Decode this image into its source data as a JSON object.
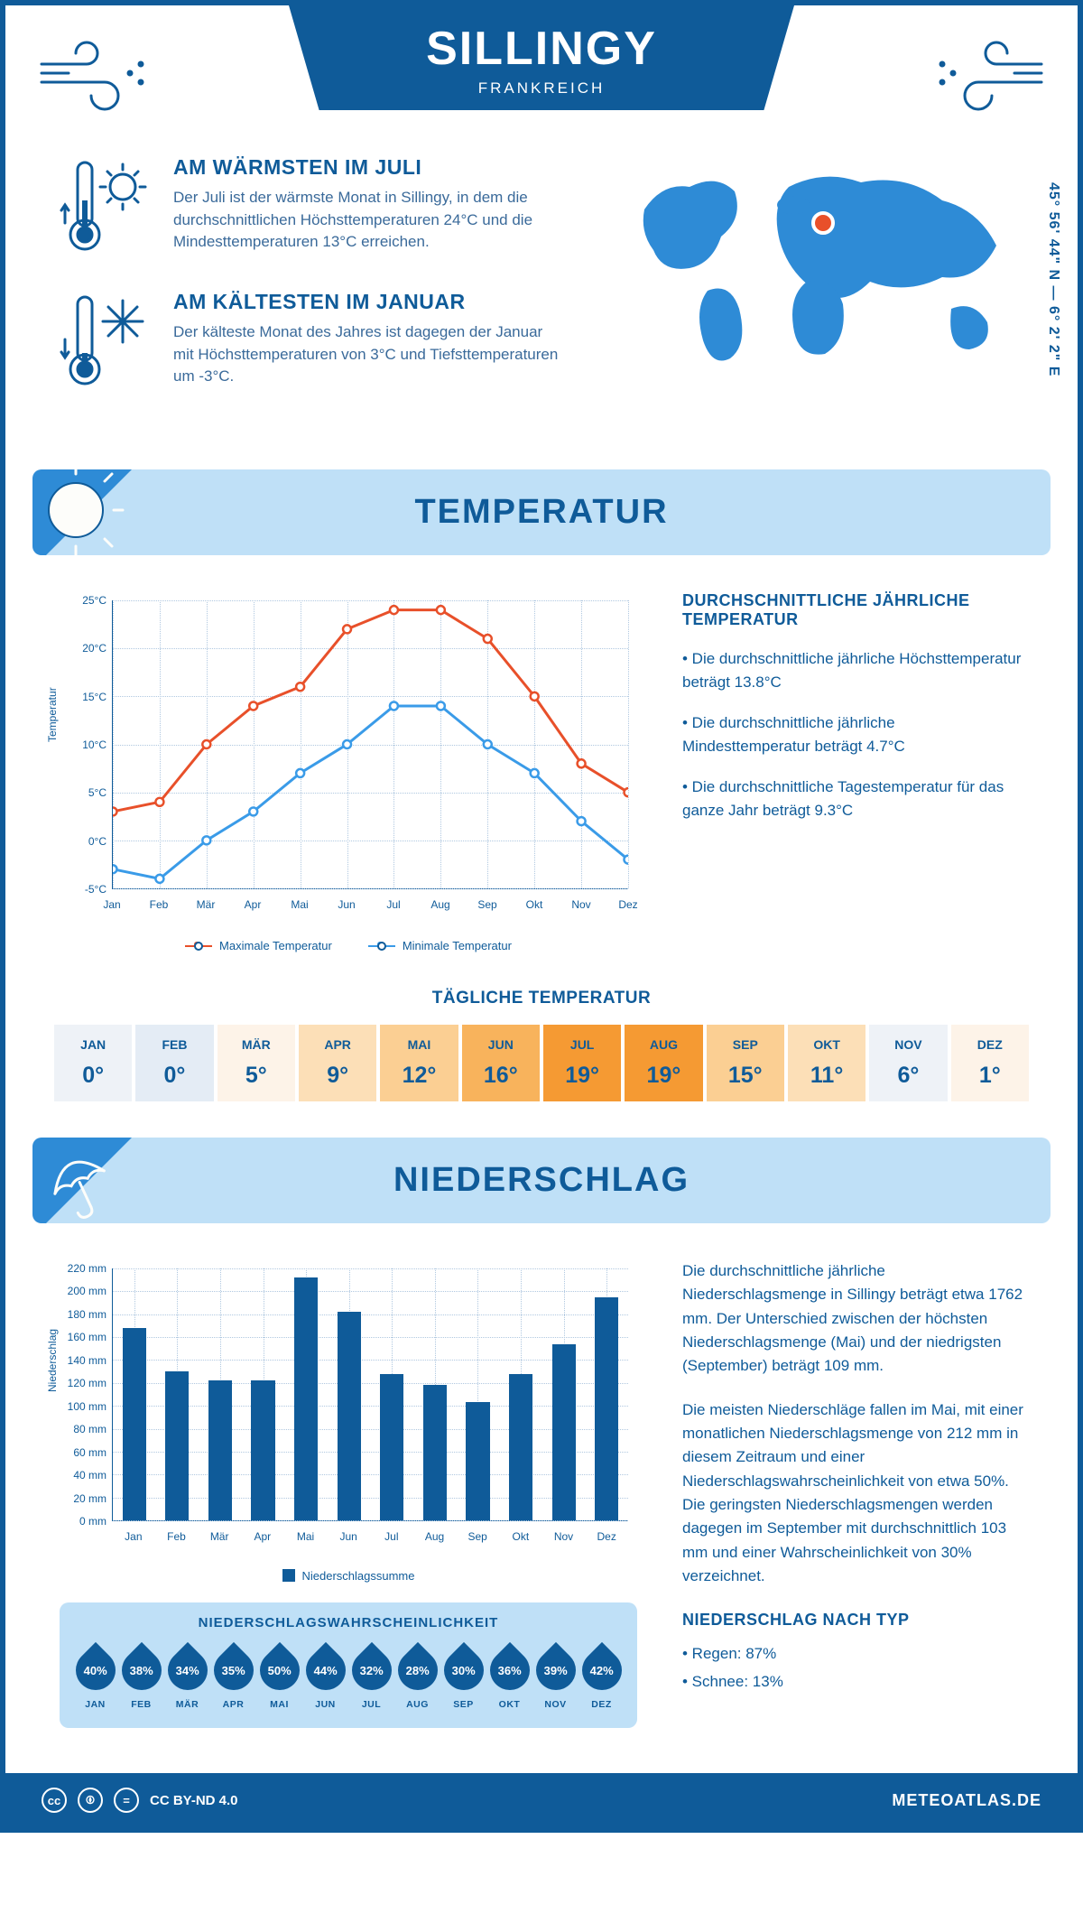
{
  "header": {
    "city": "SILLINGY",
    "country": "FRANKREICH"
  },
  "coords": "45° 56' 44\" N — 6° 2' 2\" E",
  "intro": {
    "warm": {
      "title": "AM WÄRMSTEN IM JULI",
      "text": "Der Juli ist der wärmste Monat in Sillingy, in dem die durchschnittlichen Höchsttemperaturen 24°C und die Mindesttemperaturen 13°C erreichen."
    },
    "cold": {
      "title": "AM KÄLTESTEN IM JANUAR",
      "text": "Der kälteste Monat des Jahres ist dagegen der Januar mit Höchsttemperaturen von 3°C und Tiefsttemperaturen um -3°C."
    }
  },
  "map": {
    "marker_color": "#e8502a",
    "land_color": "#2e8bd6"
  },
  "temp_section": {
    "title": "TEMPERATUR",
    "chart": {
      "type": "line",
      "months": [
        "Jan",
        "Feb",
        "Mär",
        "Apr",
        "Mai",
        "Jun",
        "Jul",
        "Aug",
        "Sep",
        "Okt",
        "Nov",
        "Dez"
      ],
      "max_values": [
        3,
        4,
        10,
        14,
        16,
        22,
        24,
        24,
        21,
        15,
        8,
        5
      ],
      "min_values": [
        -3,
        -4,
        0,
        3,
        7,
        10,
        14,
        14,
        10,
        7,
        2,
        -2
      ],
      "max_color": "#e8502a",
      "min_color": "#3a9be8",
      "ylim": [
        -5,
        25
      ],
      "ytick_step": 5,
      "y_label": "Temperatur",
      "y_suffix": "°C",
      "grid_color": "#b0c8e0",
      "background": "#ffffff",
      "legend_max": "Maximale Temperatur",
      "legend_min": "Minimale Temperatur"
    },
    "sidebar": {
      "title": "DURCHSCHNITTLICHE JÄHRLICHE TEMPERATUR",
      "bullets": [
        "• Die durchschnittliche jährliche Höchsttemperatur beträgt 13.8°C",
        "• Die durchschnittliche jährliche Mindesttemperatur beträgt 4.7°C",
        "• Die durchschnittliche Tagestemperatur für das ganze Jahr beträgt 9.3°C"
      ]
    },
    "daily": {
      "title": "TÄGLICHE TEMPERATUR",
      "months": [
        "JAN",
        "FEB",
        "MÄR",
        "APR",
        "MAI",
        "JUN",
        "JUL",
        "AUG",
        "SEP",
        "OKT",
        "NOV",
        "DEZ"
      ],
      "values": [
        "0°",
        "0°",
        "5°",
        "9°",
        "12°",
        "16°",
        "19°",
        "19°",
        "15°",
        "11°",
        "6°",
        "1°"
      ],
      "colors": [
        "#eef2f7",
        "#e4ecf5",
        "#fdf3e8",
        "#fcdfb7",
        "#fbcf93",
        "#f8b35c",
        "#f59a33",
        "#f59a33",
        "#fbcf93",
        "#fcdfb7",
        "#eef2f7",
        "#fdf3e8"
      ]
    }
  },
  "precip_section": {
    "title": "NIEDERSCHLAG",
    "chart": {
      "type": "bar",
      "months": [
        "Jan",
        "Feb",
        "Mär",
        "Apr",
        "Mai",
        "Jun",
        "Jul",
        "Aug",
        "Sep",
        "Okt",
        "Nov",
        "Dez"
      ],
      "values": [
        168,
        130,
        122,
        122,
        212,
        182,
        128,
        118,
        103,
        128,
        154,
        195
      ],
      "bar_color": "#0f5b99",
      "ylim": [
        0,
        220
      ],
      "ytick_step": 20,
      "y_label": "Niederschlag",
      "y_suffix": " mm",
      "legend": "Niederschlagssumme"
    },
    "sidebar": {
      "p1": "Die durchschnittliche jährliche Niederschlagsmenge in Sillingy beträgt etwa 1762 mm. Der Unterschied zwischen der höchsten Niederschlagsmenge (Mai) und der niedrigsten (September) beträgt 109 mm.",
      "p2": "Die meisten Niederschläge fallen im Mai, mit einer monatlichen Niederschlagsmenge von 212 mm in diesem Zeitraum und einer Niederschlagswahrscheinlichkeit von etwa 50%. Die geringsten Niederschlagsmengen werden dagegen im September mit durchschnittlich 103 mm und einer Wahrscheinlichkeit von 30% verzeichnet.",
      "type_title": "NIEDERSCHLAG NACH TYP",
      "type_bullets": [
        "• Regen: 87%",
        "• Schnee: 13%"
      ]
    },
    "prob": {
      "title": "NIEDERSCHLAGSWAHRSCHEINLICHKEIT",
      "months": [
        "JAN",
        "FEB",
        "MÄR",
        "APR",
        "MAI",
        "JUN",
        "JUL",
        "AUG",
        "SEP",
        "OKT",
        "NOV",
        "DEZ"
      ],
      "values": [
        "40%",
        "38%",
        "34%",
        "35%",
        "50%",
        "44%",
        "32%",
        "28%",
        "30%",
        "36%",
        "39%",
        "42%"
      ]
    }
  },
  "footer": {
    "license": "CC BY-ND 4.0",
    "brand": "METEOATLAS.DE"
  },
  "colors": {
    "primary": "#0f5b99",
    "light": "#bfe0f7",
    "text": "#0f5b99"
  }
}
